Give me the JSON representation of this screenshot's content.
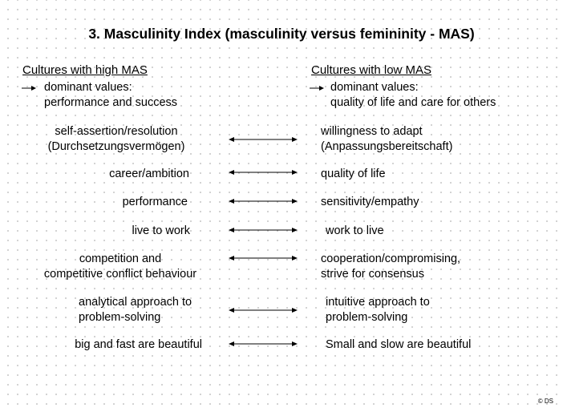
{
  "title": "3. Masculinity Index (masculinity versus femininity - MAS)",
  "left": {
    "heading": "Cultures with high MAS",
    "dominant_line1": "dominant values:",
    "dominant_line2": "performance and success"
  },
  "right": {
    "heading": "Cultures with low MAS",
    "dominant_line1": "dominant values:",
    "dominant_line2": "quality of life and care for others"
  },
  "pairs": [
    {
      "left": [
        "self-assertion/resolution",
        "(Durchsetzungsvermögen)"
      ],
      "right": [
        "willingness to adapt",
        "(Anpassungsbereitschaft)"
      ]
    },
    {
      "left": [
        "career/ambition"
      ],
      "right": [
        "quality of life"
      ]
    },
    {
      "left": [
        "performance"
      ],
      "right": [
        "sensitivity/empathy"
      ]
    },
    {
      "left": [
        "live to work"
      ],
      "right": [
        "work to live"
      ]
    },
    {
      "left": [
        "competition and",
        "competitive conflict behaviour"
      ],
      "right": [
        "cooperation/compromising,",
        "strive for consensus"
      ]
    },
    {
      "left": [
        "analytical approach to",
        "problem-solving"
      ],
      "right": [
        "intuitive approach to",
        "problem-solving"
      ]
    },
    {
      "left": [
        "big and fast are beautiful"
      ],
      "right": [
        "Small and slow are beautiful"
      ]
    }
  ],
  "copyright": "© DS"
}
